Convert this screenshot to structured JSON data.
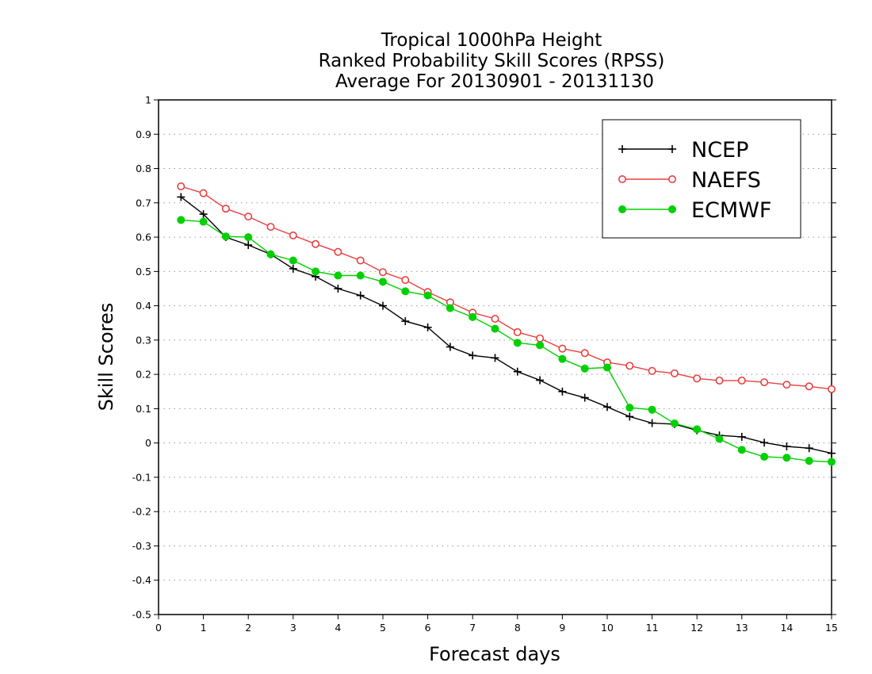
{
  "chart_data": {
    "type": "line",
    "title": [
      "Tropical 1000hPa Height",
      "Ranked Probability Skill Scores (RPSS)",
      "Average For 20130901 - 20131130"
    ],
    "xlabel": "Forecast days",
    "ylabel": "Skill Scores",
    "xlim": [
      0,
      15
    ],
    "ylim": [
      -0.5,
      1
    ],
    "x_ticks": [
      "0",
      "1",
      "2",
      "3",
      "4",
      "5",
      "6",
      "7",
      "8",
      "9",
      "10",
      "11",
      "12",
      "13",
      "14",
      "15"
    ],
    "y_ticks": [
      "-0.5",
      "-0.4",
      "-0.3",
      "-0.2",
      "-0.1",
      "0",
      "0.1",
      "0.2",
      "0.3",
      "0.4",
      "0.5",
      "0.6",
      "0.7",
      "0.8",
      "0.9",
      "1"
    ],
    "grid": "horizontal-dotted",
    "legend_position": "top-right",
    "x": [
      0.5,
      1,
      1.5,
      2,
      2.5,
      3,
      3.5,
      4,
      4.5,
      5,
      5.5,
      6,
      6.5,
      7,
      7.5,
      8,
      8.5,
      9,
      9.5,
      10,
      10.5,
      11,
      11.5,
      12,
      12.5,
      13,
      13.5,
      14,
      14.5,
      15
    ],
    "series": [
      {
        "name": "NCEP",
        "color": "#000000",
        "marker": "plus",
        "values": [
          0.717,
          0.667,
          0.6,
          0.577,
          0.55,
          0.508,
          0.485,
          0.45,
          0.43,
          0.4,
          0.355,
          0.337,
          0.28,
          0.255,
          0.248,
          0.208,
          0.183,
          0.15,
          0.132,
          0.105,
          0.077,
          0.058,
          0.055,
          0.037,
          0.022,
          0.018,
          0.001,
          -0.01,
          -0.015,
          -0.03
        ]
      },
      {
        "name": "NAEFS",
        "color": "#e84040",
        "marker": "open-circle",
        "values": [
          0.748,
          0.728,
          0.683,
          0.66,
          0.63,
          0.605,
          0.58,
          0.557,
          0.532,
          0.498,
          0.475,
          0.44,
          0.41,
          0.38,
          0.362,
          0.323,
          0.305,
          0.275,
          0.262,
          0.235,
          0.225,
          0.21,
          0.203,
          0.188,
          0.182,
          0.182,
          0.177,
          0.17,
          0.165,
          0.157
        ]
      },
      {
        "name": "ECMWF",
        "color": "#00d000",
        "marker": "filled-circle",
        "values": [
          0.65,
          0.645,
          0.602,
          0.6,
          0.55,
          0.532,
          0.5,
          0.488,
          0.488,
          0.47,
          0.442,
          0.43,
          0.393,
          0.367,
          0.333,
          0.292,
          0.285,
          0.245,
          0.217,
          0.22,
          0.103,
          0.097,
          0.057,
          0.04,
          0.012,
          -0.02,
          -0.04,
          -0.043,
          -0.052,
          -0.055
        ]
      }
    ]
  }
}
